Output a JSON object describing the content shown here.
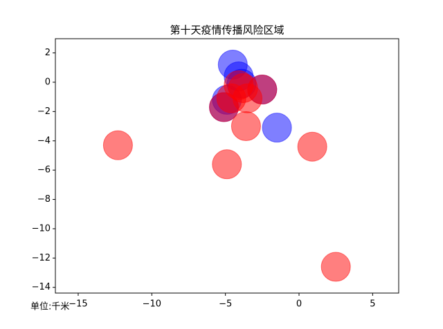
{
  "chart_data": {
    "type": "scatter",
    "title": "第十天疫情传播风险区域",
    "xlabel": "单位:千米",
    "xlim": [
      -16.55,
      6.77
    ],
    "ylim": [
      -14.39,
      2.97
    ],
    "xticks": [
      {
        "value": -15,
        "label": "−15"
      },
      {
        "value": -10,
        "label": "−10"
      },
      {
        "value": -5,
        "label": "−5"
      },
      0,
      5
    ],
    "yticks": [
      2,
      0,
      {
        "value": -2,
        "label": "−2"
      },
      {
        "value": -4,
        "label": "−4"
      },
      {
        "value": -6,
        "label": "−6"
      },
      {
        "value": -8,
        "label": "−8"
      },
      {
        "value": -10,
        "label": "−10"
      },
      {
        "value": -12,
        "label": "−12"
      },
      {
        "value": -14,
        "label": "−14"
      }
    ],
    "alpha": 0.5,
    "series": [
      {
        "color": "blue",
        "x": [
          -4.5,
          -4.1,
          -1.5,
          -4.9,
          -5.1,
          -2.5,
          -3.9
        ],
        "y": [
          1.2,
          0.4,
          -3.1,
          -1.2,
          -1.7,
          -0.5,
          -0.1
        ]
      },
      {
        "color": "red",
        "x": [
          -12.3,
          -4.9,
          -3.6,
          0.9,
          2.5,
          -3.5,
          -4.1,
          -4.6,
          -5.1,
          -2.5,
          -3.8
        ],
        "y": [
          -4.3,
          -5.6,
          -3.0,
          -4.4,
          -12.6,
          -1.1,
          -0.2,
          -1.1,
          -1.7,
          -0.5,
          -0.4
        ]
      }
    ]
  }
}
